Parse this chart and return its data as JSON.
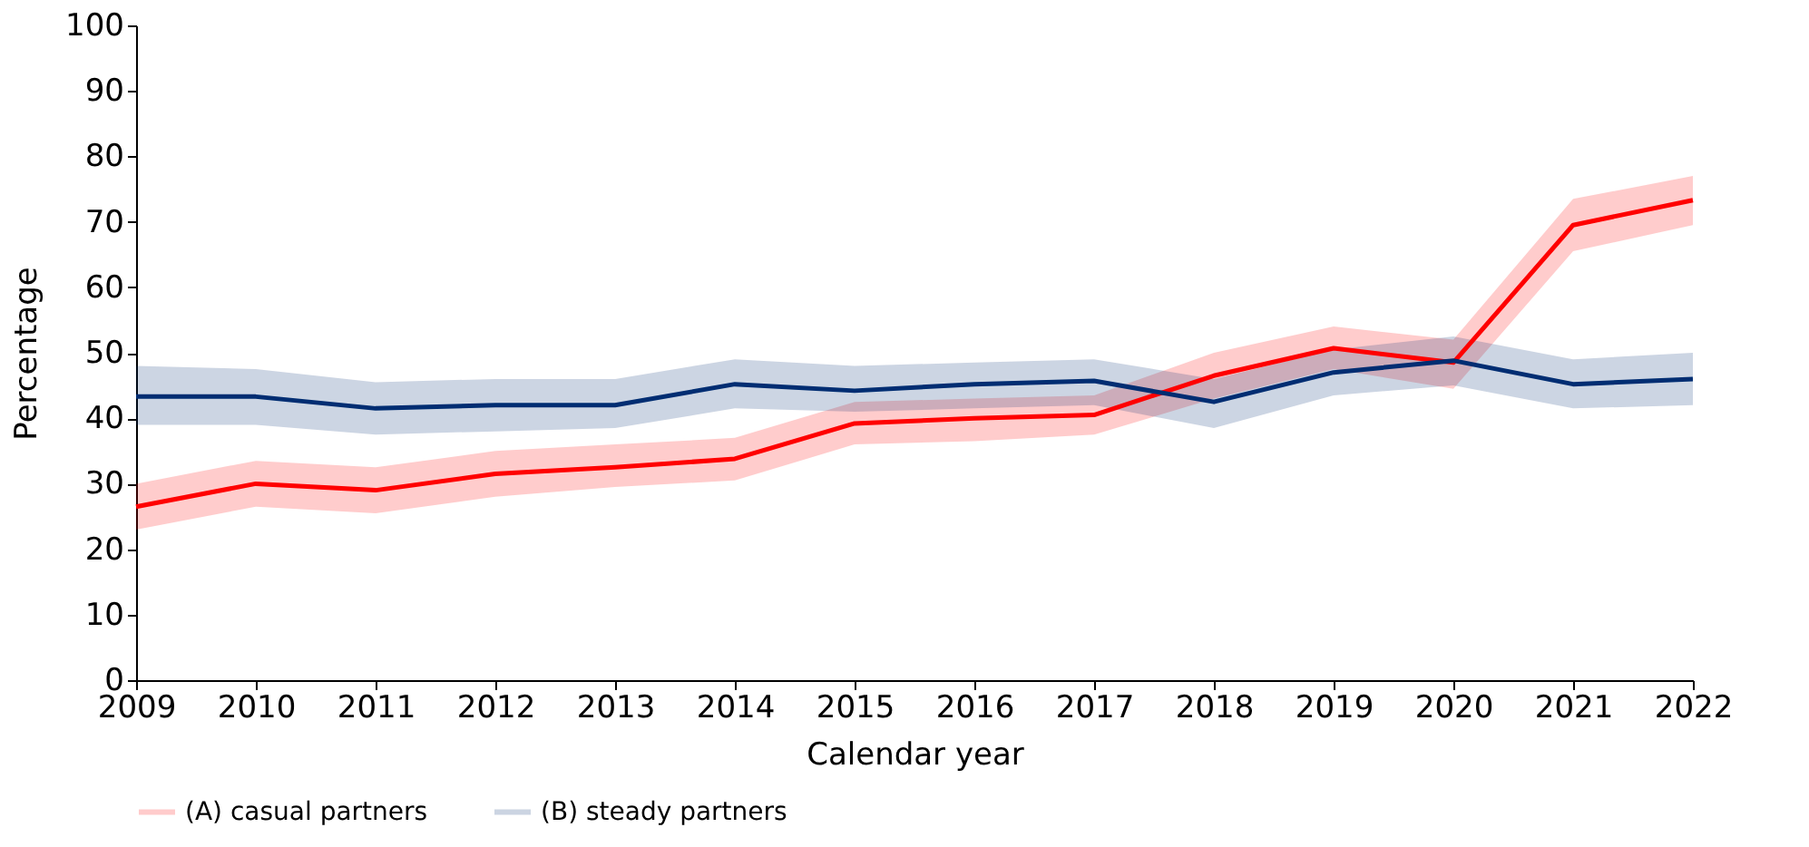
{
  "chart_data": {
    "type": "line",
    "xlabel": "Calendar year",
    "ylabel": "Percentage",
    "x": [
      2009,
      2010,
      2011,
      2012,
      2013,
      2014,
      2015,
      2016,
      2017,
      2018,
      2019,
      2020,
      2021,
      2022
    ],
    "series": [
      {
        "name": "(A) casual partners",
        "color": "#ff0000",
        "values": [
          26.5,
          30,
          29,
          31.5,
          32.5,
          33.8,
          39.2,
          40,
          40.5,
          46.5,
          50.7,
          48.5,
          69.5,
          73.3
        ],
        "lower": [
          23,
          26.5,
          25.5,
          28,
          29.5,
          30.5,
          36,
          36.5,
          37.5,
          43,
          47.5,
          44.5,
          65.5,
          69.5
        ],
        "upper": [
          30,
          33.5,
          32.5,
          35,
          36,
          37,
          42.5,
          43,
          43.5,
          50,
          54,
          52,
          73.5,
          77
        ]
      },
      {
        "name": "(B) steady partners",
        "color": "#002d72",
        "values": [
          43.3,
          43.3,
          41.5,
          42,
          42,
          45.2,
          44.2,
          45.2,
          45.7,
          42.5,
          47,
          48.8,
          45.2,
          46
        ],
        "lower": [
          39,
          39,
          37.5,
          38,
          38.5,
          41.5,
          41,
          41.5,
          42,
          38.5,
          43.5,
          45,
          41.5,
          42
        ],
        "upper": [
          48,
          47.5,
          45.5,
          46,
          46,
          49,
          48,
          48.5,
          49,
          46,
          50.5,
          52.5,
          49,
          50
        ]
      }
    ],
    "xlim": [
      2009,
      2022
    ],
    "xticks": [
      2009,
      2010,
      2011,
      2012,
      2013,
      2014,
      2015,
      2016,
      2017,
      2018,
      2019,
      2020,
      2021,
      2022
    ],
    "ylim": [
      0,
      100
    ],
    "yticks": [
      0,
      10,
      20,
      30,
      40,
      50,
      60,
      70,
      80,
      90,
      100
    ],
    "grid": false,
    "legend": "bottom",
    "marker": "none",
    "line_style": "solid"
  }
}
